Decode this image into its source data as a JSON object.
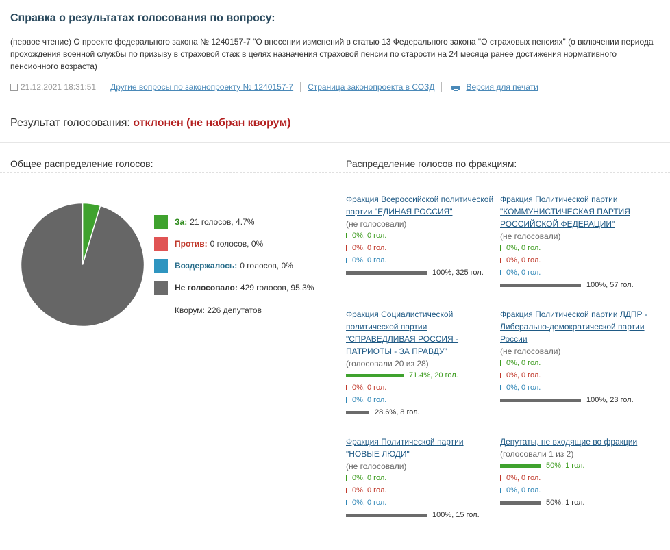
{
  "header": {
    "title": "Справка о результатах голосования по вопросу:",
    "description": "(первое чтение) О проекте федерального закона № 1240157-7 \"О внесении изменений в статью 13 Федерального закона \"О страховых пенсиях\" (о включении периода прохождения военной службы по призыву в страховой стаж в целях назначения страховой пенсии по старости на 24 месяца ранее достижения нормативного пенсионного возраста)",
    "date": "21.12.2021 18:31:51",
    "links": {
      "other_questions": "Другие вопросы по законопроекту № 1240157-7",
      "sozd_page": "Страница законопроекта в СОЗД",
      "print_version": "Версия для печати"
    }
  },
  "result": {
    "label": "Результат голосования:",
    "value": "отклонен (не набран кворум)"
  },
  "sections": {
    "overall": "Общее распределение голосов:",
    "factions": "Распределение голосов по фракциям:"
  },
  "colors": {
    "for": "#3fa22e",
    "against": "#e05454",
    "abstain": "#2f95c0",
    "not_voted": "#666666",
    "title": "#2b4a5e",
    "result": "#b32020",
    "link": "#4a89b8"
  },
  "legend": [
    {
      "key": "for",
      "label": "За:",
      "value": "21 голосов, 4.7%",
      "label_color": "#2e8b1c",
      "swatch": "#3fa22e"
    },
    {
      "key": "against",
      "label": "Против:",
      "value": "0 голосов, 0%",
      "label_color": "#c0392b",
      "swatch": "#e05454"
    },
    {
      "key": "abstain",
      "label": "Воздержалось:",
      "value": "0 голосов, 0%",
      "label_color": "#2b6f8c",
      "swatch": "#2f95c0"
    },
    {
      "key": "not_voted",
      "label": "Не голосовало:",
      "value": "429 голосов, 95.3%",
      "label_color": "#333333",
      "swatch": "#6b6b6b"
    }
  ],
  "quorum": "Кворум: 226 депутатов",
  "chart_data": {
    "type": "pie",
    "slices": [
      {
        "label": "За",
        "value": 21,
        "percent": 4.7,
        "color": "#3fa22e"
      },
      {
        "label": "Против",
        "value": 0,
        "percent": 0,
        "color": "#e05454"
      },
      {
        "label": "Воздержалось",
        "value": 0,
        "percent": 0,
        "color": "#2f95c0"
      },
      {
        "label": "Не голосовало",
        "value": 429,
        "percent": 95.3,
        "color": "#666666"
      }
    ]
  },
  "factions": [
    {
      "name": "Фракция Всероссийской политической партии \"ЕДИНАЯ РОССИЯ\"",
      "status": "(не голосовали)",
      "for": {
        "text": "0%, 0 гол.",
        "fraction": 0
      },
      "against": {
        "text": "0%, 0 гол.",
        "fraction": 0
      },
      "abstain": {
        "text": "0%, 0 гол.",
        "fraction": 0
      },
      "not_voted": {
        "text": "100%, 325 гол.",
        "fraction": 1
      }
    },
    {
      "name": "Фракция Политической партии \"КОММУНИСТИЧЕСКАЯ ПАРТИЯ РОССИЙСКОЙ ФЕДЕРАЦИИ\"",
      "status": "(не голосовали)",
      "for": {
        "text": "0%, 0 гол.",
        "fraction": 0
      },
      "against": {
        "text": "0%, 0 гол.",
        "fraction": 0
      },
      "abstain": {
        "text": "0%, 0 гол.",
        "fraction": 0
      },
      "not_voted": {
        "text": "100%, 57 гол.",
        "fraction": 1
      }
    },
    {
      "name": "Фракция Социалистической политической партии \"СПРАВЕДЛИВАЯ РОССИЯ - ПАТРИОТЫ - ЗА ПРАВДУ\"",
      "status": "(голосовали 20 из 28)",
      "for": {
        "text": "71.4%, 20 гол.",
        "fraction": 0.714
      },
      "against": {
        "text": "0%, 0 гол.",
        "fraction": 0
      },
      "abstain": {
        "text": "0%, 0 гол.",
        "fraction": 0
      },
      "not_voted": {
        "text": "28.6%, 8 гол.",
        "fraction": 0.286
      }
    },
    {
      "name": "Фракция Политической партии ЛДПР - Либерально-демократической партии России",
      "status": "(не голосовали)",
      "for": {
        "text": "0%, 0 гол.",
        "fraction": 0
      },
      "against": {
        "text": "0%, 0 гол.",
        "fraction": 0
      },
      "abstain": {
        "text": "0%, 0 гол.",
        "fraction": 0
      },
      "not_voted": {
        "text": "100%, 23 гол.",
        "fraction": 1
      }
    },
    {
      "name": "Фракция Политической партии \"НОВЫЕ ЛЮДИ\"",
      "status": "(не голосовали)",
      "for": {
        "text": "0%, 0 гол.",
        "fraction": 0
      },
      "against": {
        "text": "0%, 0 гол.",
        "fraction": 0
      },
      "abstain": {
        "text": "0%, 0 гол.",
        "fraction": 0
      },
      "not_voted": {
        "text": "100%, 15 гол.",
        "fraction": 1
      }
    },
    {
      "name": "Депутаты, не входящие во фракции",
      "status": "(голосовали 1 из 2)",
      "for": {
        "text": "50%, 1 гол.",
        "fraction": 0.5
      },
      "against": {
        "text": "0%, 0 гол.",
        "fraction": 0
      },
      "abstain": {
        "text": "0%, 0 гол.",
        "fraction": 0
      },
      "not_voted": {
        "text": "50%, 1 гол.",
        "fraction": 0.5
      }
    }
  ]
}
